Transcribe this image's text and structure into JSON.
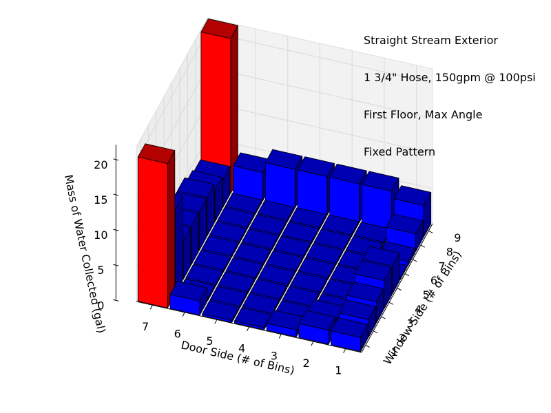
{
  "chart_data": {
    "type": "bar3d",
    "title_lines": [
      "Straight Stream Exterior",
      "1 3/4\" Hose, 150gpm @ 100psi",
      "First Floor, Max Angle",
      "Fixed Pattern"
    ],
    "xlabel": "Window Side (# of Bins)",
    "ylabel": "Door Side (# of Bins)",
    "zlabel": "Mass of Water Collected (gal)",
    "x_ticks": [
      "1",
      "2",
      "3",
      "4",
      "5",
      "6",
      "7",
      "8",
      "9"
    ],
    "y_ticks": [
      "1",
      "2",
      "3",
      "4",
      "5",
      "6",
      "7"
    ],
    "z_ticks": [
      "0",
      "5",
      "10",
      "15",
      "20"
    ],
    "zlim": [
      0,
      22
    ],
    "grid": true,
    "colors": {
      "default": "#0000ff",
      "highlight": "#ff0000"
    },
    "highlight_bars": [
      {
        "window": 9,
        "door": 7
      },
      {
        "window": 1,
        "door": 7
      }
    ],
    "values": [
      [
        2.0,
        2.5,
        3.0,
        4.0,
        4.0,
        0.2,
        0.6,
        2.5,
        4.5
      ],
      [
        2.0,
        1.5,
        0.3,
        0.3,
        0.3,
        0.3,
        0.3,
        0.3,
        5.5
      ],
      [
        1.0,
        0.3,
        0.3,
        0.3,
        0.3,
        0.3,
        0.3,
        0.3,
        5.5
      ],
      [
        0.3,
        0.3,
        0.3,
        0.3,
        0.3,
        0.3,
        0.3,
        0.3,
        5.5
      ],
      [
        0.3,
        0.3,
        0.3,
        0.3,
        0.3,
        0.3,
        0.3,
        0.3,
        5.5
      ],
      [
        2.0,
        0.3,
        0.3,
        0.3,
        0.3,
        0.3,
        0.3,
        0.3,
        4.0
      ],
      [
        20.5,
        12.0,
        5.5,
        5.5,
        5.5,
        5.5,
        4.5,
        4.0,
        22.0
      ]
    ]
  }
}
